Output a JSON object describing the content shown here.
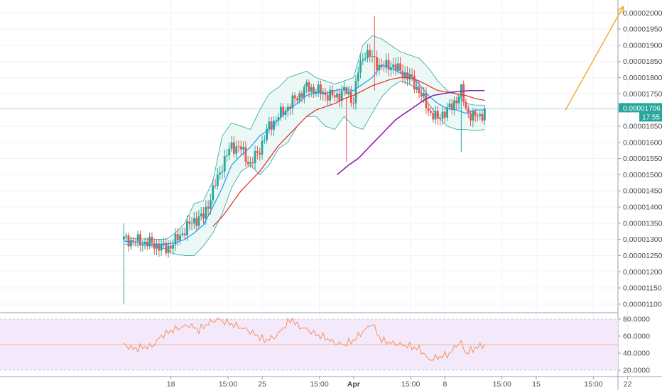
{
  "chart_data": {
    "type": "candlestick",
    "colors": {
      "up": "#26a69a",
      "down": "#ef5350",
      "sma_fast": "#2196f3",
      "sma_mid": "#e53935",
      "sma_slow": "#8e24aa",
      "bollinger": "#26a69a",
      "forecast_arrow": "#f5a623",
      "rsi_line": "#f5894b",
      "rsi_band": "#f3e5fb",
      "price_line": "#26a69a"
    },
    "price_axis": {
      "ylim": [
        1.08e-05,
        2.04e-05
      ],
      "ticks": [
        "0.00001100",
        "0.00001150",
        "0.00001200",
        "0.00001250",
        "0.00001300",
        "0.00001350",
        "0.00001400",
        "0.00001450",
        "0.00001500",
        "0.00001550",
        "0.00001600",
        "0.00001650",
        "0.00001700",
        "0.00001750",
        "0.00001800",
        "0.00001850",
        "0.00001900",
        "0.00001950",
        "0.00002000"
      ]
    },
    "current_price": {
      "value": "0.00001706",
      "countdown": "17:55"
    },
    "rsi_axis": {
      "ylim": [
        15,
        85
      ],
      "ticks": [
        "20.0000",
        "40.0000",
        "60.0000",
        "80.0000"
      ],
      "midline": 50
    },
    "time_axis": {
      "labels": [
        {
          "text": "18",
          "day": 1.0,
          "bold": false
        },
        {
          "text": "15:00",
          "day": 1.625,
          "bold": false
        },
        {
          "text": "25",
          "day": 2.0,
          "bold": false
        },
        {
          "text": "15:00",
          "day": 2.625,
          "bold": false
        },
        {
          "text": "Apr",
          "day": 3.0,
          "bold": true
        },
        {
          "text": "15:00",
          "day": 3.625,
          "bold": false
        },
        {
          "text": "8",
          "day": 4.0,
          "bold": false
        },
        {
          "text": "15:00",
          "day": 4.625,
          "bold": false
        },
        {
          "text": "15",
          "day": 5.0,
          "bold": false
        },
        {
          "text": "15:00",
          "day": 5.625,
          "bold": false
        },
        {
          "text": "22",
          "day": 6.0,
          "bold": false
        }
      ]
    },
    "candles_anchor": {
      "start_day": 0.485,
      "step_day": 0.02565
    },
    "close_keypoints": [
      [
        0,
        1300
      ],
      [
        10,
        1290
      ],
      [
        15,
        1280
      ],
      [
        18,
        1270
      ],
      [
        22,
        1295
      ],
      [
        26,
        1330
      ],
      [
        30,
        1360
      ],
      [
        34,
        1370
      ],
      [
        38,
        1450
      ],
      [
        42,
        1530
      ],
      [
        46,
        1590
      ],
      [
        50,
        1580
      ],
      [
        54,
        1530
      ],
      [
        58,
        1580
      ],
      [
        62,
        1650
      ],
      [
        66,
        1680
      ],
      [
        70,
        1710
      ],
      [
        74,
        1740
      ],
      [
        78,
        1770
      ],
      [
        82,
        1760
      ],
      [
        86,
        1750
      ],
      [
        90,
        1740
      ],
      [
        94,
        1760
      ],
      [
        98,
        1730
      ],
      [
        100,
        1820
      ],
      [
        103,
        1880
      ],
      [
        106,
        1860
      ],
      [
        110,
        1830
      ],
      [
        114,
        1840
      ],
      [
        118,
        1820
      ],
      [
        122,
        1800
      ],
      [
        126,
        1760
      ],
      [
        130,
        1700
      ],
      [
        134,
        1670
      ],
      [
        136,
        1690
      ],
      [
        140,
        1710
      ],
      [
        144,
        1760
      ],
      [
        146,
        1700
      ],
      [
        149,
        1680
      ],
      [
        152,
        1680
      ],
      [
        154,
        1700
      ]
    ],
    "bollinger_upper_keypoints": [
      [
        0,
        1305
      ],
      [
        12,
        1300
      ],
      [
        18,
        1300
      ],
      [
        22,
        1320
      ],
      [
        26,
        1350
      ],
      [
        30,
        1410
      ],
      [
        34,
        1420
      ],
      [
        38,
        1480
      ],
      [
        42,
        1620
      ],
      [
        46,
        1660
      ],
      [
        50,
        1650
      ],
      [
        54,
        1640
      ],
      [
        58,
        1700
      ],
      [
        62,
        1750
      ],
      [
        66,
        1770
      ],
      [
        70,
        1800
      ],
      [
        74,
        1810
      ],
      [
        78,
        1820
      ],
      [
        82,
        1800
      ],
      [
        86,
        1790
      ],
      [
        90,
        1780
      ],
      [
        94,
        1790
      ],
      [
        98,
        1800
      ],
      [
        102,
        1900
      ],
      [
        106,
        1930
      ],
      [
        110,
        1920
      ],
      [
        114,
        1900
      ],
      [
        118,
        1880
      ],
      [
        122,
        1870
      ],
      [
        126,
        1860
      ],
      [
        130,
        1830
      ],
      [
        134,
        1790
      ],
      [
        138,
        1760
      ],
      [
        142,
        1750
      ],
      [
        146,
        1720
      ],
      [
        150,
        1715
      ],
      [
        154,
        1715
      ]
    ],
    "bollinger_lower_keypoints": [
      [
        0,
        1285
      ],
      [
        12,
        1280
      ],
      [
        18,
        1270
      ],
      [
        22,
        1255
      ],
      [
        26,
        1250
      ],
      [
        30,
        1250
      ],
      [
        34,
        1280
      ],
      [
        38,
        1320
      ],
      [
        42,
        1380
      ],
      [
        46,
        1460
      ],
      [
        50,
        1510
      ],
      [
        54,
        1530
      ],
      [
        58,
        1500
      ],
      [
        62,
        1530
      ],
      [
        66,
        1580
      ],
      [
        70,
        1600
      ],
      [
        74,
        1650
      ],
      [
        78,
        1680
      ],
      [
        82,
        1680
      ],
      [
        86,
        1650
      ],
      [
        90,
        1640
      ],
      [
        94,
        1680
      ],
      [
        98,
        1650
      ],
      [
        102,
        1640
      ],
      [
        106,
        1690
      ],
      [
        110,
        1740
      ],
      [
        114,
        1770
      ],
      [
        118,
        1790
      ],
      [
        122,
        1780
      ],
      [
        126,
        1760
      ],
      [
        130,
        1720
      ],
      [
        134,
        1680
      ],
      [
        138,
        1650
      ],
      [
        142,
        1640
      ],
      [
        146,
        1640
      ],
      [
        150,
        1635
      ],
      [
        154,
        1640
      ]
    ],
    "sma_fast_keypoints": [
      [
        0,
        1295
      ],
      [
        12,
        1285
      ],
      [
        18,
        1285
      ],
      [
        22,
        1290
      ],
      [
        26,
        1300
      ],
      [
        30,
        1320
      ],
      [
        34,
        1345
      ],
      [
        38,
        1400
      ],
      [
        42,
        1460
      ],
      [
        46,
        1530
      ],
      [
        50,
        1560
      ],
      [
        54,
        1585
      ],
      [
        58,
        1620
      ],
      [
        62,
        1640
      ],
      [
        66,
        1670
      ],
      [
        70,
        1700
      ],
      [
        74,
        1720
      ],
      [
        78,
        1745
      ],
      [
        82,
        1755
      ],
      [
        86,
        1750
      ],
      [
        90,
        1760
      ],
      [
        94,
        1765
      ],
      [
        98,
        1760
      ],
      [
        102,
        1780
      ],
      [
        106,
        1800
      ],
      [
        110,
        1840
      ],
      [
        114,
        1830
      ],
      [
        118,
        1815
      ],
      [
        122,
        1810
      ],
      [
        126,
        1780
      ],
      [
        130,
        1745
      ],
      [
        134,
        1720
      ],
      [
        138,
        1705
      ],
      [
        142,
        1700
      ],
      [
        146,
        1690
      ],
      [
        150,
        1700
      ],
      [
        154,
        1700
      ]
    ],
    "sma_mid_keypoints": [
      [
        38,
        1340
      ],
      [
        42,
        1370
      ],
      [
        46,
        1410
      ],
      [
        50,
        1450
      ],
      [
        54,
        1480
      ],
      [
        58,
        1510
      ],
      [
        62,
        1550
      ],
      [
        66,
        1590
      ],
      [
        70,
        1620
      ],
      [
        74,
        1650
      ],
      [
        78,
        1680
      ],
      [
        82,
        1700
      ],
      [
        86,
        1710
      ],
      [
        90,
        1720
      ],
      [
        94,
        1735
      ],
      [
        98,
        1745
      ],
      [
        102,
        1760
      ],
      [
        106,
        1775
      ],
      [
        110,
        1785
      ],
      [
        114,
        1795
      ],
      [
        118,
        1800
      ],
      [
        122,
        1800
      ],
      [
        126,
        1790
      ],
      [
        130,
        1775
      ],
      [
        134,
        1760
      ],
      [
        138,
        1755
      ],
      [
        142,
        1750
      ],
      [
        146,
        1745
      ],
      [
        150,
        1735
      ],
      [
        154,
        1730
      ]
    ],
    "sma_slow_keypoints": [
      [
        91,
        1500
      ],
      [
        96,
        1530
      ],
      [
        100,
        1550
      ],
      [
        104,
        1580
      ],
      [
        108,
        1610
      ],
      [
        112,
        1640
      ],
      [
        116,
        1670
      ],
      [
        120,
        1690
      ],
      [
        124,
        1710
      ],
      [
        128,
        1730
      ],
      [
        132,
        1745
      ],
      [
        136,
        1750
      ],
      [
        140,
        1755
      ],
      [
        144,
        1758
      ],
      [
        148,
        1760
      ],
      [
        154,
        1760
      ]
    ],
    "wicks": [
      {
        "i": 0,
        "high": 1350,
        "low": 1100
      },
      {
        "i": 95,
        "high": 1740,
        "low": 1540
      },
      {
        "i": 107,
        "high": 1990,
        "low": 1760
      },
      {
        "i": 144,
        "high": 1770,
        "low": 1570
      }
    ],
    "forecast_arrow": {
      "from_day": 5.32,
      "from_value": 1700,
      "to_day": 6.0,
      "to_value": 2020
    },
    "rsi_keypoints": [
      [
        0,
        50
      ],
      [
        4,
        45
      ],
      [
        8,
        47
      ],
      [
        12,
        48
      ],
      [
        16,
        60
      ],
      [
        20,
        66
      ],
      [
        24,
        70
      ],
      [
        28,
        73
      ],
      [
        32,
        67
      ],
      [
        36,
        75
      ],
      [
        40,
        80
      ],
      [
        44,
        76
      ],
      [
        48,
        72
      ],
      [
        52,
        68
      ],
      [
        56,
        62
      ],
      [
        60,
        55
      ],
      [
        64,
        58
      ],
      [
        66,
        63
      ],
      [
        70,
        76
      ],
      [
        72,
        80
      ],
      [
        74,
        72
      ],
      [
        78,
        68
      ],
      [
        82,
        62
      ],
      [
        86,
        58
      ],
      [
        90,
        52
      ],
      [
        94,
        50
      ],
      [
        98,
        55
      ],
      [
        102,
        65
      ],
      [
        106,
        75
      ],
      [
        108,
        64
      ],
      [
        110,
        55
      ],
      [
        114,
        52
      ],
      [
        118,
        50
      ],
      [
        122,
        48
      ],
      [
        126,
        45
      ],
      [
        128,
        40
      ],
      [
        130,
        32
      ],
      [
        134,
        35
      ],
      [
        138,
        38
      ],
      [
        140,
        42
      ],
      [
        142,
        50
      ],
      [
        144,
        52
      ],
      [
        146,
        40
      ],
      [
        150,
        46
      ],
      [
        154,
        50
      ]
    ]
  }
}
